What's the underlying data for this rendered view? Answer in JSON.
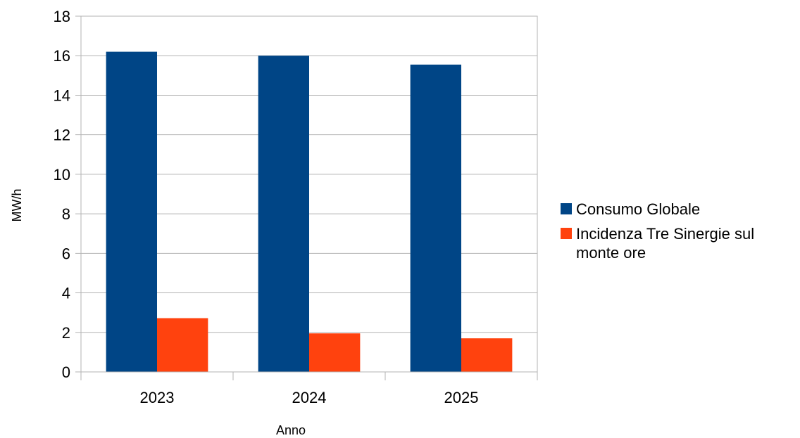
{
  "chart_data": {
    "type": "bar",
    "title": "",
    "xlabel": "Anno",
    "ylabel": "MW/h",
    "categories": [
      "2023",
      "2024",
      "2025"
    ],
    "ylim": [
      0,
      18
    ],
    "yticks": [
      "0",
      "2",
      "4",
      "6",
      "8",
      "10",
      "12",
      "14",
      "16",
      "18"
    ],
    "grid": true,
    "legend_position": "right",
    "series": [
      {
        "name": "Consumo Globale",
        "color": "#004586",
        "values": [
          16.2,
          16.0,
          15.55
        ]
      },
      {
        "name": "Incidenza Tre Sinergie sul monte ore",
        "color": "#ff420e",
        "values": [
          2.72,
          1.95,
          1.7
        ]
      }
    ],
    "legend_lines": [
      [
        "Consumo Globale"
      ],
      [
        "Incidenza Tre Sinergie sul",
        "monte ore"
      ]
    ]
  }
}
